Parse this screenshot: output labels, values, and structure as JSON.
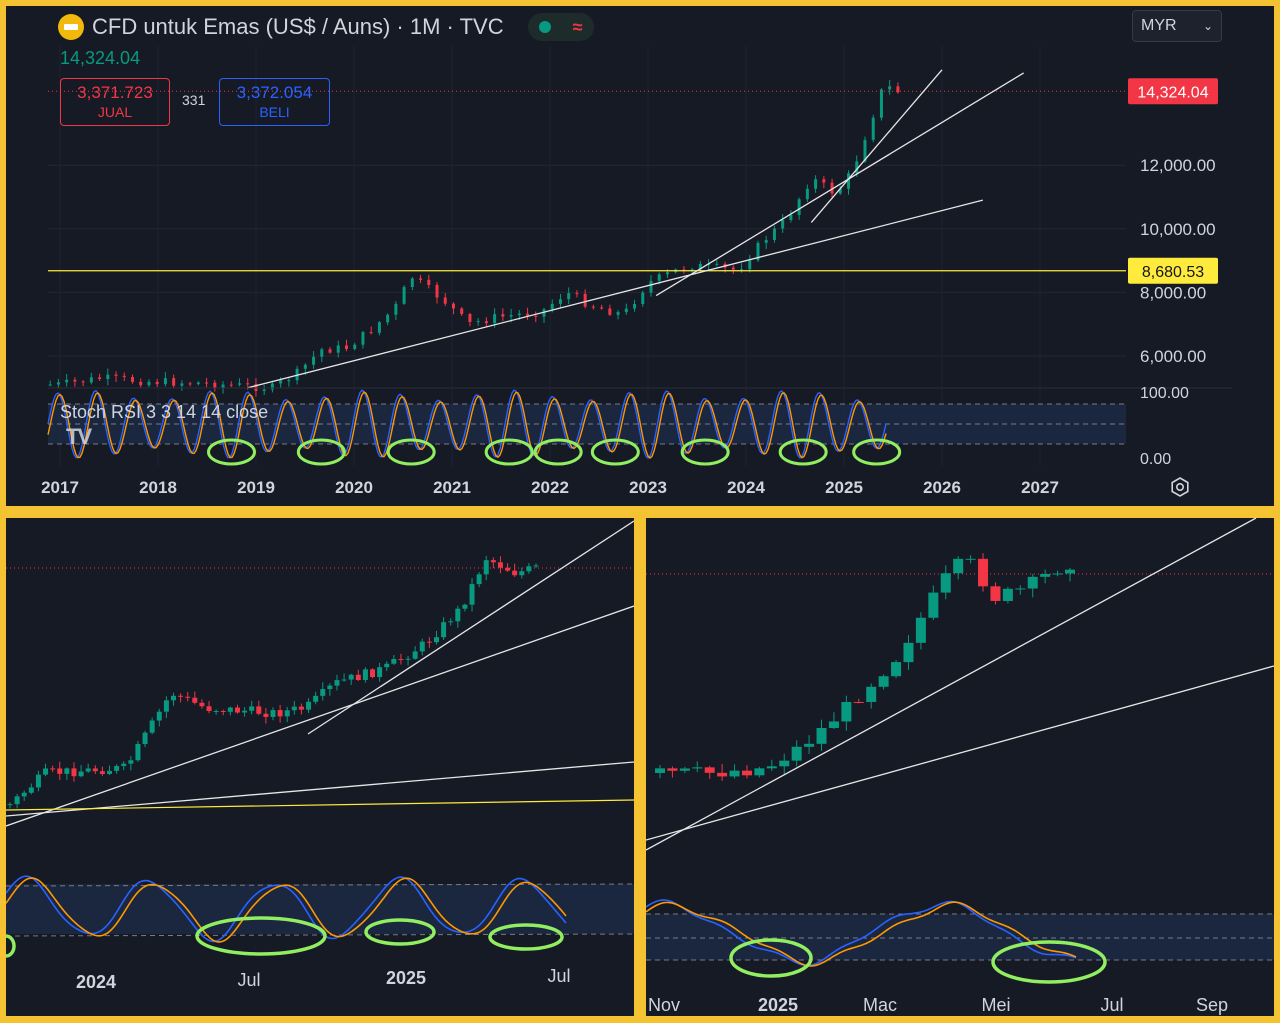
{
  "header": {
    "title": "CFD untuk Emas (US$ / Auns) · 1M · TVC",
    "last_value": "14,324.04",
    "currency": "MYR"
  },
  "quote": {
    "sell_value": "3,371.723",
    "sell_label": "JUAL",
    "spread": "331",
    "buy_value": "3,372.054",
    "buy_label": "BELI"
  },
  "indicator": {
    "name": "Stoch RSI 3 3 14 14 close",
    "level_top": "100.00",
    "level_bottom": "0.00",
    "logo": "TV"
  },
  "colors": {
    "up": "#089981",
    "down": "#f23645",
    "k_line": "#2962ff",
    "d_line": "#ff9800",
    "level_line": "#ffeb3b",
    "circles": "#90ee60"
  },
  "chart_data": [
    {
      "type": "candlestick",
      "panel": "top",
      "interval": "1M",
      "x_tick_labels": [
        "2017",
        "2018",
        "2019",
        "2020",
        "2021",
        "2022",
        "2023",
        "2024",
        "2025",
        "2026",
        "2027"
      ],
      "y_tick_labels": [
        "6,000.00",
        "8,000.00",
        "10,000.00",
        "12,000.00"
      ],
      "price_labels": [
        {
          "text": "14,324.04",
          "value": 14324.04,
          "color": "#f23645"
        },
        {
          "text": "8,680.53",
          "value": 8680.53,
          "color": "#ffeb3b"
        }
      ],
      "close_path": [
        [
          "2017-01",
          5100
        ],
        [
          "2017-06",
          5300
        ],
        [
          "2017-12",
          5200
        ],
        [
          "2018-06",
          5150
        ],
        [
          "2018-12",
          5050
        ],
        [
          "2019-03",
          5000
        ],
        [
          "2019-06",
          5450
        ],
        [
          "2019-09",
          6200
        ],
        [
          "2019-12",
          6250
        ],
        [
          "2020-03",
          6800
        ],
        [
          "2020-06",
          7500
        ],
        [
          "2020-08",
          8500
        ],
        [
          "2020-12",
          7750
        ],
        [
          "2021-03",
          7000
        ],
        [
          "2021-06",
          7200
        ],
        [
          "2021-12",
          7400
        ],
        [
          "2022-03",
          8000
        ],
        [
          "2022-06",
          7600
        ],
        [
          "2022-10",
          7300
        ],
        [
          "2023-01",
          8300
        ],
        [
          "2023-06",
          8850
        ],
        [
          "2023-12",
          8700
        ],
        [
          "2024-03",
          9600
        ],
        [
          "2024-06",
          10300
        ],
        [
          "2024-09",
          11600
        ],
        [
          "2024-12",
          11100
        ],
        [
          "2025-02",
          11800
        ],
        [
          "2025-04",
          13200
        ],
        [
          "2025-06",
          14600
        ],
        [
          "2025-07",
          14324
        ]
      ],
      "trendlines": [
        {
          "from": [
            "2018-12",
            5000
          ],
          "to": [
            "2026-06",
            10900
          ]
        },
        {
          "from": [
            "2023-02",
            7900
          ],
          "to": [
            "2026-11",
            14900
          ]
        },
        {
          "from": [
            "2024-09",
            10200
          ],
          "to": [
            "2026-01",
            15000
          ]
        }
      ],
      "horizontal_line": 8680.53,
      "stoch_rsi_oversold_circles": [
        "2018-10",
        "2019-09",
        "2020-08",
        "2021-08",
        "2022-02",
        "2022-09",
        "2023-08",
        "2024-08",
        "2025-05"
      ]
    },
    {
      "type": "candlestick",
      "panel": "bottom-left",
      "x_tick_labels": [
        "2024",
        "Jul",
        "2025",
        "Jul"
      ],
      "stoch_rsi_oversold_circles": [
        "2024-07",
        "2024-12",
        "2025-06"
      ]
    },
    {
      "type": "candlestick",
      "panel": "bottom-right",
      "x_tick_labels": [
        "Nov",
        "2025",
        "Mac",
        "Mei",
        "Jul",
        "Sep"
      ],
      "stoch_rsi_oversold_circles": [
        "2024-12",
        "2025-05"
      ]
    }
  ]
}
